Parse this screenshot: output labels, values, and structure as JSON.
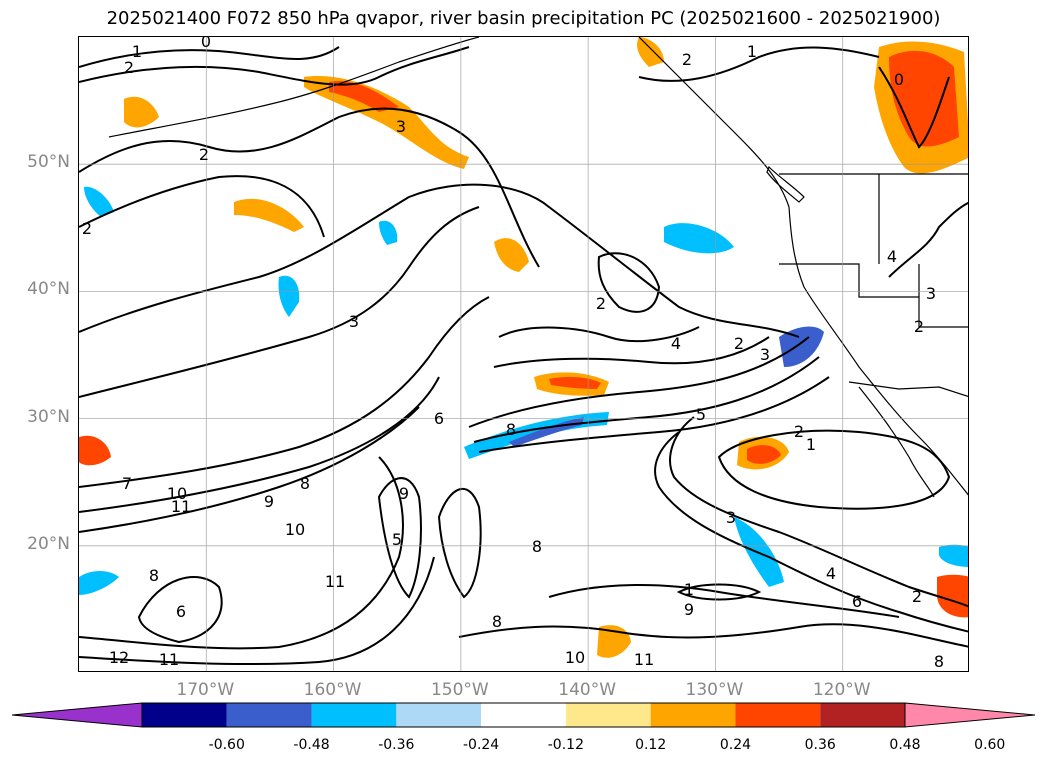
{
  "title": "2025021400 F072 850 hPa qvapor, river basin precipitation PC (2025021600 - 2025021900)",
  "chart_data": {
    "type": "contour-map",
    "title": "2025021400 F072 850 hPa qvapor, river basin precipitation PC (2025021600 - 2025021900)",
    "xlabel": "",
    "ylabel": "",
    "lon_ticks": [
      "170°W",
      "160°W",
      "150°W",
      "140°W",
      "130°W",
      "120°W"
    ],
    "lon_values": [
      -170,
      -160,
      -150,
      -140,
      -130,
      -120
    ],
    "lat_ticks": [
      "50°N",
      "40°N",
      "30°N",
      "20°N"
    ],
    "lat_values": [
      50,
      40,
      30,
      20
    ],
    "lon_range": [
      -180,
      -110
    ],
    "lat_range": [
      10,
      60
    ],
    "grid": true,
    "contour_labels": [
      "0",
      "1",
      "2",
      "3",
      "4",
      "5",
      "6",
      "7",
      "8",
      "9",
      "10",
      "11",
      "12"
    ],
    "colorbar": {
      "ticks": [
        "-0.60",
        "-0.48",
        "-0.36",
        "-0.24",
        "-0.12",
        "0.12",
        "0.24",
        "0.36",
        "0.48",
        "0.60"
      ],
      "tick_values": [
        -0.6,
        -0.48,
        -0.36,
        -0.24,
        -0.12,
        0.12,
        0.24,
        0.36,
        0.48,
        0.6
      ],
      "colors": [
        "#9932CC",
        "#00008B",
        "#3A5FCD",
        "#00BFFF",
        "#ADD8F6",
        "#FFFFFF",
        "#FFE88C",
        "#FFA500",
        "#FF4500",
        "#B22222",
        "#FF88AA"
      ],
      "extend": "both"
    }
  }
}
